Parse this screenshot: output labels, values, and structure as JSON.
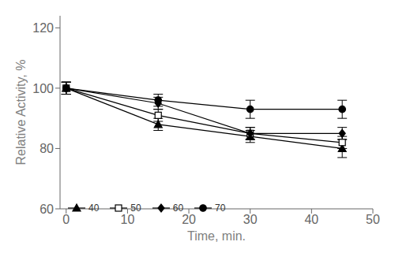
{
  "chart_data": {
    "type": "line",
    "x": [
      0,
      15,
      30,
      45
    ],
    "series": [
      {
        "name": "40",
        "color": "black",
        "marker": "triangle",
        "values": [
          100,
          88,
          84,
          80
        ],
        "errors": [
          2,
          2,
          2,
          3
        ]
      },
      {
        "name": "50",
        "color": "black",
        "marker": "open-square",
        "values": [
          100,
          91,
          85,
          82
        ],
        "errors": [
          2,
          2,
          2,
          2
        ]
      },
      {
        "name": "60",
        "color": "black",
        "marker": "diamond",
        "values": [
          100,
          95,
          85,
          85
        ],
        "errors": [
          2,
          2,
          2,
          2
        ]
      },
      {
        "name": "70",
        "color": "black",
        "marker": "circle",
        "values": [
          100,
          96,
          93,
          93
        ],
        "errors": [
          2,
          2,
          3,
          3
        ]
      }
    ],
    "xlabel": "Time, min.",
    "ylabel": "Relative Activity, %",
    "xlim": [
      -1,
      50
    ],
    "ylim": [
      60,
      124
    ],
    "xticks": [
      0,
      10,
      20,
      30,
      40,
      50
    ],
    "yticks": [
      60,
      80,
      100,
      120
    ],
    "legend": "lower left",
    "grid": false
  }
}
